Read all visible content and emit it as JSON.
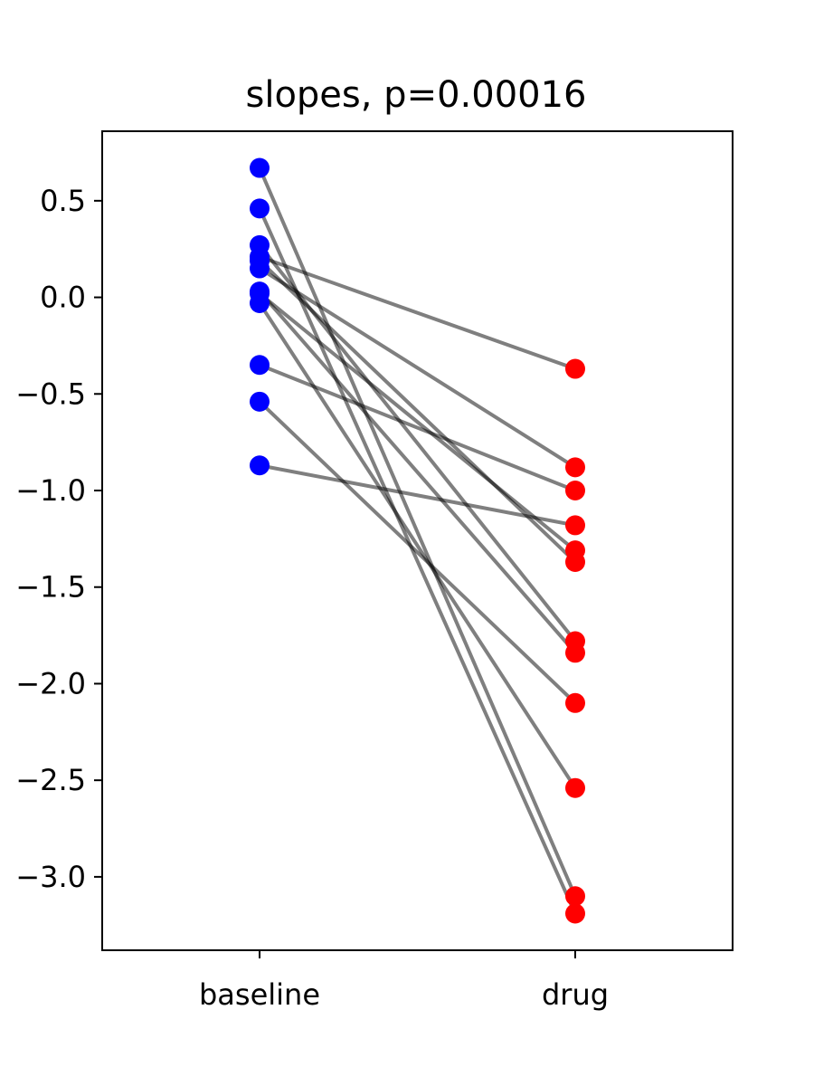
{
  "chart_data": {
    "type": "scatter",
    "title": "slopes, p=0.00016",
    "categories": [
      "baseline",
      "drug"
    ],
    "xlabel": "",
    "ylabel": "",
    "ylim": [
      -3.38,
      0.86
    ],
    "yticks": [
      0.5,
      0.0,
      -0.5,
      -1.0,
      -1.5,
      -2.0,
      -2.5,
      -3.0
    ],
    "ytick_labels": [
      "0.5",
      "0.0",
      "−0.5",
      "−1.0",
      "−1.5",
      "−2.0",
      "−2.5",
      "−3.0"
    ],
    "grid": false,
    "pairs": [
      {
        "baseline": 0.67,
        "drug": -3.1
      },
      {
        "baseline": 0.46,
        "drug": -3.19
      },
      {
        "baseline": 0.27,
        "drug": -1.78
      },
      {
        "baseline": 0.21,
        "drug": -0.37
      },
      {
        "baseline": 0.19,
        "drug": -1.37
      },
      {
        "baseline": 0.15,
        "drug": -0.88
      },
      {
        "baseline": 0.03,
        "drug": -1.84
      },
      {
        "baseline": -0.03,
        "drug": -2.54
      },
      {
        "baseline": -0.35,
        "drug": -1.0
      },
      {
        "baseline": -0.54,
        "drug": -2.1
      },
      {
        "baseline": -0.87,
        "drug": -1.18
      },
      {
        "baseline": 0.02,
        "drug": -1.31
      }
    ],
    "colors": {
      "baseline": "#0000ff",
      "drug": "#ff0000",
      "line": "#000000"
    }
  }
}
